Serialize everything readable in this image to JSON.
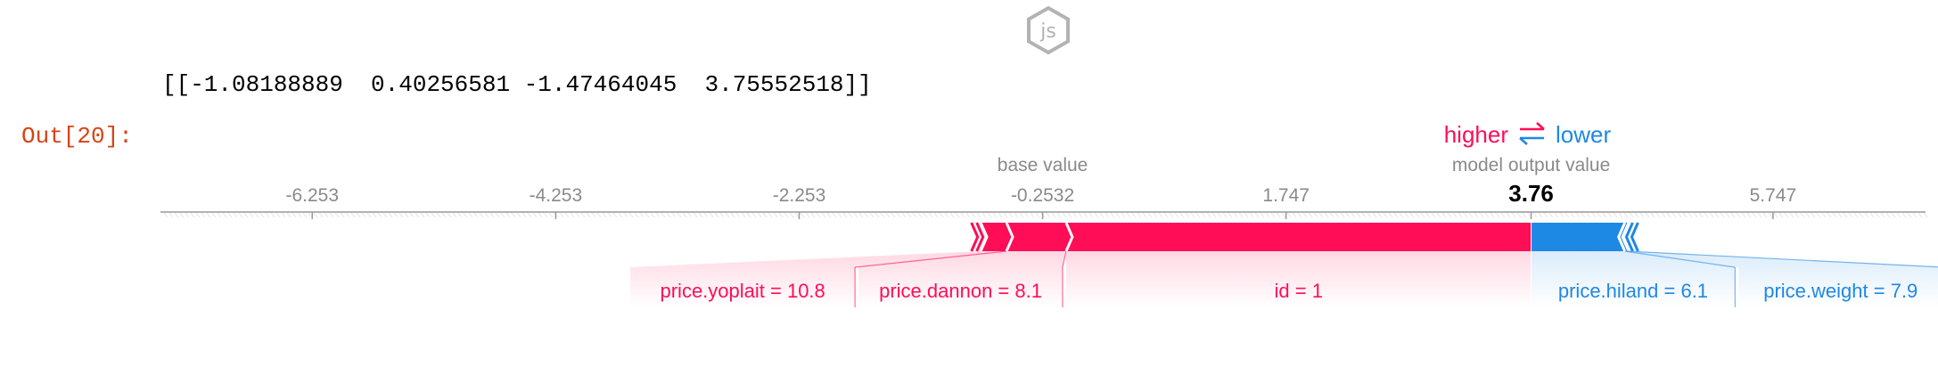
{
  "cell": {
    "output_text": "[[-1.08188889  0.40256581 -1.47464045  3.75552518]]",
    "prompt": "Out[20]:"
  },
  "icons": {
    "badge": "js-hexagon-icon",
    "swap": "swap-arrows-icon"
  },
  "colors": {
    "positive": "#ff0d57",
    "negative": "#1e88e5",
    "axis": "#999999",
    "text_gray": "#8a8a8a"
  },
  "chart_data": {
    "type": "force",
    "legend": {
      "higher": "higher",
      "lower": "lower"
    },
    "base_value": -0.2532,
    "base_value_label": "base value",
    "output_value": 3.76,
    "output_value_label": "model output value",
    "x_range": [
      -7.5,
      7.0
    ],
    "ticks": [
      {
        "value": -6.253,
        "label": "-6.253"
      },
      {
        "value": -4.253,
        "label": "-4.253"
      },
      {
        "value": -2.253,
        "label": "-2.253"
      },
      {
        "value": -0.2532,
        "label": "-0.2532"
      },
      {
        "value": 1.747,
        "label": "1.747"
      },
      {
        "value": 3.76,
        "label": "3.76",
        "bold": true
      },
      {
        "value": 5.747,
        "label": "5.747"
      }
    ],
    "positive_features": [
      {
        "label": "id = 1",
        "start": -0.06,
        "end": 3.76
      },
      {
        "label": "price.dannon = 8.1",
        "start": -0.55,
        "end": -0.06
      },
      {
        "label": "price.yoplait = 10.8",
        "start": -0.75,
        "end": -0.55
      }
    ],
    "negative_features": [
      {
        "label": "price.hiland = 6.1",
        "start": 3.76,
        "end": 4.53
      },
      {
        "label": "price.weight = 7.9",
        "start": 4.53,
        "end": 4.55
      }
    ]
  }
}
